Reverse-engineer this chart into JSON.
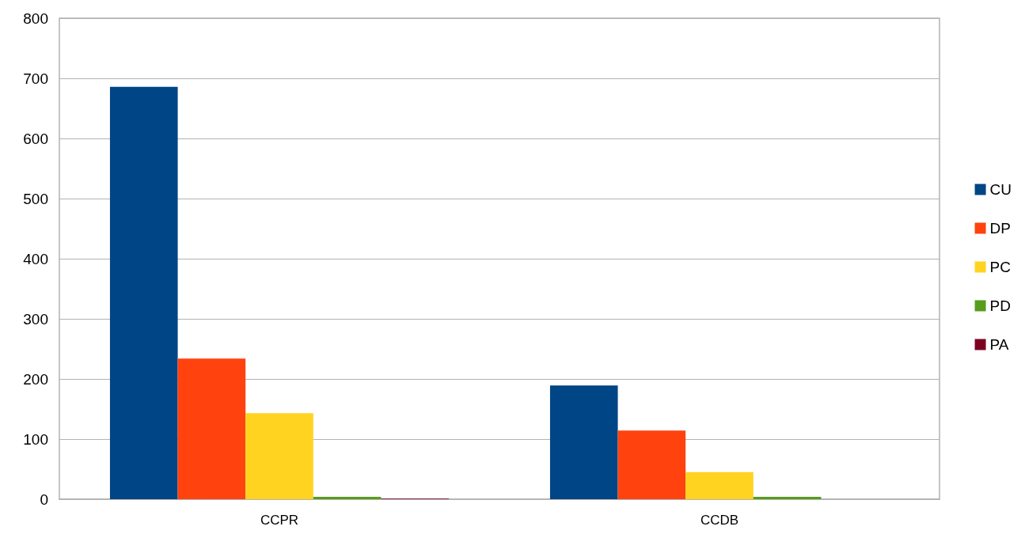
{
  "chart_data": {
    "type": "bar",
    "categories": [
      "CCPR",
      "CCDB"
    ],
    "series": [
      {
        "name": "CU",
        "color": "#004586",
        "values": [
          686,
          189
        ]
      },
      {
        "name": "DP",
        "color": "#ff420e",
        "values": [
          234,
          114
        ]
      },
      {
        "name": "PC",
        "color": "#ffd320",
        "values": [
          143,
          45
        ]
      },
      {
        "name": "PD",
        "color": "#579d1c",
        "values": [
          4,
          4
        ]
      },
      {
        "name": "PA",
        "color": "#7e0021",
        "values": [
          1,
          0
        ]
      }
    ],
    "ylim": [
      0,
      800
    ],
    "yticks": [
      0,
      100,
      200,
      300,
      400,
      500,
      600,
      700,
      800
    ],
    "grid": "y",
    "legend": "right"
  }
}
